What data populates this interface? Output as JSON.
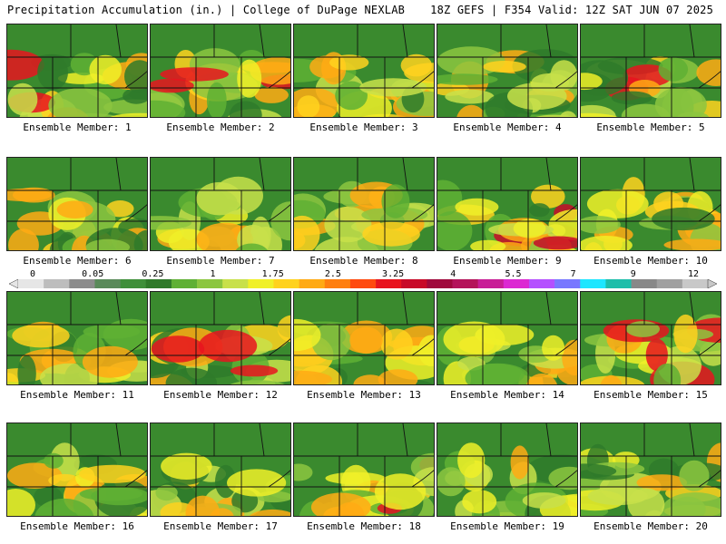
{
  "header": {
    "left": "Precipitation Accumulation (in.) | College of DuPage NEXLAB",
    "right": "18Z GEFS | F354 Valid: 12Z SAT JUN 07 2025"
  },
  "colorbar": {
    "labels": [
      "0",
      "0.05",
      "0.25",
      "1",
      "1.75",
      "2.5",
      "3.25",
      "4",
      "5.5",
      "7",
      "9",
      "12"
    ],
    "colors": [
      "#e6e6e6",
      "#bdbdbd",
      "#8c8c8c",
      "#5a8a5a",
      "#3f8f3a",
      "#2f7a2a",
      "#5fb034",
      "#8cc63f",
      "#c8e04a",
      "#f0f028",
      "#ffd21e",
      "#ffaa14",
      "#ff7f0f",
      "#ff4a0f",
      "#e8141e",
      "#c80a28",
      "#a00a3c",
      "#b4145a",
      "#c81e96",
      "#dc28d2",
      "#b450ff",
      "#7878ff",
      "#1ee6ff",
      "#1ebeaa",
      "#888888",
      "#a0a0a0",
      "#c8c8c8"
    ]
  },
  "members": [
    {
      "label": "Ensemble Member: 1",
      "color": "#e8141e"
    },
    {
      "label": "Ensemble Member: 2",
      "color": "#e8141e"
    },
    {
      "label": "Ensemble Member: 3",
      "color": "#ffaa14"
    },
    {
      "label": "Ensemble Member: 4",
      "color": "#5fb034"
    },
    {
      "label": "Ensemble Member: 5",
      "color": "#e8141e"
    },
    {
      "label": "Ensemble Member: 6",
      "color": "#ffaa14"
    },
    {
      "label": "Ensemble Member: 7",
      "color": "#c8e04a"
    },
    {
      "label": "Ensemble Member: 8",
      "color": "#8cc63f"
    },
    {
      "label": "Ensemble Member: 9",
      "color": "#c80a28"
    },
    {
      "label": "Ensemble Member: 10",
      "color": "#ffaa14"
    },
    {
      "label": "Ensemble Member: 11",
      "color": "#ffaa14"
    },
    {
      "label": "Ensemble Member: 12",
      "color": "#e8141e"
    },
    {
      "label": "Ensemble Member: 13",
      "color": "#ffd21e"
    },
    {
      "label": "Ensemble Member: 14",
      "color": "#5fb034"
    },
    {
      "label": "Ensemble Member: 15",
      "color": "#e8141e"
    },
    {
      "label": "Ensemble Member: 16",
      "color": "#ffd21e"
    },
    {
      "label": "Ensemble Member: 17",
      "color": "#ffaa14"
    },
    {
      "label": "Ensemble Member: 18",
      "color": "#e8141e"
    },
    {
      "label": "Ensemble Member: 19",
      "color": "#ffaa14"
    },
    {
      "label": "Ensemble Member: 20",
      "color": "#8cc63f"
    }
  ]
}
